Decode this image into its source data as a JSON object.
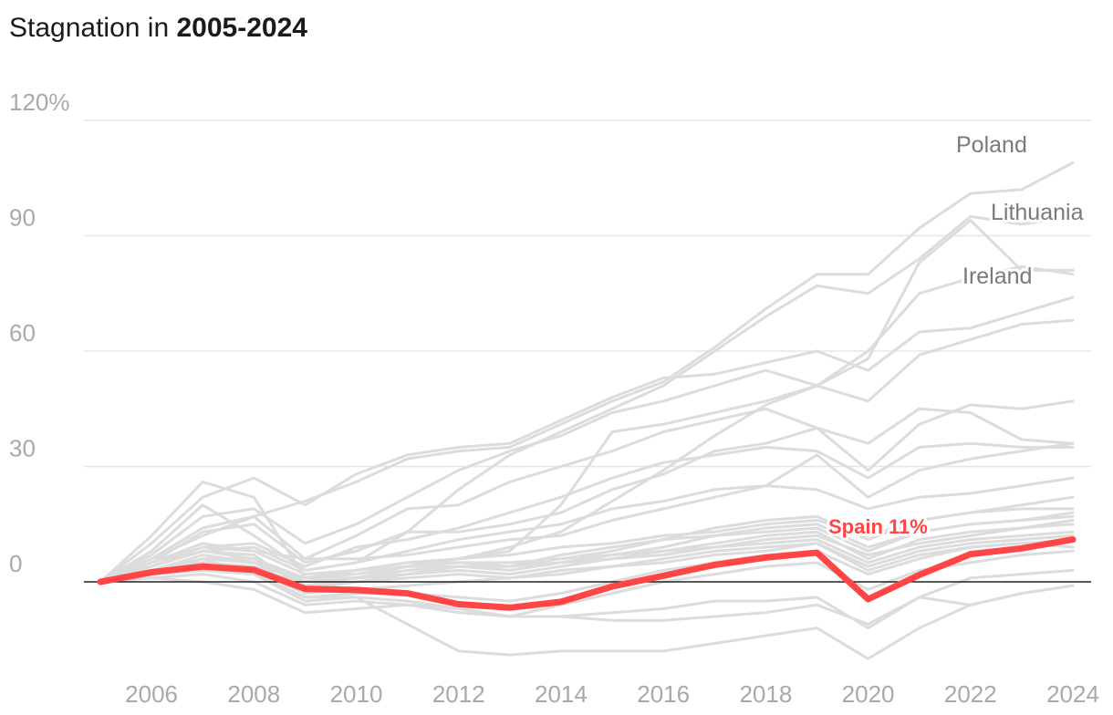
{
  "title": {
    "prefix": "Stagnation in ",
    "bold": "2005-2024"
  },
  "chart_data": {
    "type": "line",
    "y_unit_suffix": "%",
    "ylim": [
      -20,
      120
    ],
    "xlim": [
      2005,
      2024
    ],
    "y_ticks": [
      0,
      30,
      60,
      90,
      120
    ],
    "y_tick_labels": [
      "0",
      "30",
      "60",
      "90",
      "120%"
    ],
    "x_ticks": [
      2006,
      2008,
      2010,
      2012,
      2014,
      2016,
      2018,
      2020,
      2022,
      2024
    ],
    "x_tick_labels": [
      "2006",
      "2008",
      "2010",
      "2012",
      "2014",
      "2016",
      "2018",
      "2020",
      "2022",
      "2024"
    ],
    "grid": true,
    "colors": {
      "highlight": "#ff4545",
      "context": "#dcdcdc",
      "grid": "#e6e6e6",
      "zero": "#222222",
      "label": "#7a7a7a",
      "tick": "#a9a9a9"
    },
    "x": [
      2005,
      2006,
      2007,
      2008,
      2009,
      2010,
      2011,
      2012,
      2013,
      2014,
      2015,
      2016,
      2017,
      2018,
      2019,
      2020,
      2021,
      2022,
      2023,
      2024
    ],
    "highlight": {
      "name": "Spain",
      "label": "Spain 11%",
      "values": [
        0,
        2.5,
        4,
        3.1,
        -1.8,
        -2.1,
        -3,
        -5.8,
        -6.7,
        -5.2,
        -1.2,
        1.6,
        4.4,
        6.3,
        7.6,
        -4.5,
        1.8,
        7.2,
        8.7,
        11
      ]
    },
    "labeled_series": [
      {
        "name": "Poland",
        "values": [
          0,
          6,
          12,
          17,
          21,
          26,
          32,
          34,
          35,
          41,
          47,
          52,
          61,
          71,
          80,
          80,
          92,
          101,
          102,
          109
        ]
      },
      {
        "name": "Lithuania",
        "values": [
          0,
          8,
          20,
          12,
          3,
          5,
          13,
          24,
          33,
          39,
          45,
          51,
          60,
          69,
          77,
          75,
          84,
          95,
          93,
          95
        ]
      },
      {
        "name": "Ireland",
        "values": [
          0,
          5,
          9,
          8,
          2,
          3,
          5,
          6,
          8,
          20,
          39,
          41,
          44,
          47,
          51,
          58,
          83,
          94,
          81,
          81
        ]
      }
    ],
    "background_series": [
      [
        0,
        12,
        26,
        22,
        1,
        1,
        4,
        6,
        9,
        13,
        21,
        29,
        38,
        46,
        51,
        60,
        75,
        79,
        82,
        80
      ],
      [
        0,
        10,
        22,
        27,
        20,
        28,
        33,
        35,
        36,
        42,
        48,
        53,
        54,
        57,
        60,
        55,
        65,
        66,
        70,
        74
      ],
      [
        0,
        7,
        17,
        19,
        10,
        15,
        22,
        29,
        34,
        38,
        44,
        47,
        51,
        55,
        51,
        47,
        59,
        63,
        67,
        68
      ],
      [
        0,
        6,
        14,
        17,
        6,
        12,
        19,
        20,
        26,
        30,
        34,
        39,
        42,
        45,
        40,
        36,
        45,
        44,
        37,
        36
      ],
      [
        0,
        5,
        13,
        15,
        5,
        8,
        13,
        13,
        15,
        18,
        24,
        28,
        34,
        36,
        40,
        29,
        41,
        46,
        45,
        47
      ],
      [
        0,
        4,
        9,
        10,
        4,
        9,
        11,
        14,
        18,
        22,
        27,
        31,
        33,
        35,
        34,
        27,
        35,
        36,
        35,
        35
      ],
      [
        0,
        5,
        10,
        8,
        6,
        6,
        7,
        9,
        11,
        12,
        16,
        19,
        22,
        25,
        33,
        22,
        29,
        32,
        34,
        36
      ],
      [
        0,
        4,
        8,
        9,
        3,
        5,
        8,
        11,
        13,
        15,
        19,
        21,
        24,
        25,
        24,
        19,
        22,
        23,
        25,
        27
      ],
      [
        0,
        3,
        6,
        6,
        1,
        3,
        5,
        6,
        7,
        9,
        10,
        12,
        13,
        15,
        16,
        12,
        16,
        18,
        19,
        19
      ],
      [
        0,
        4,
        8,
        7,
        -2,
        0,
        2,
        4,
        4,
        6,
        8,
        11,
        14,
        16,
        17,
        11,
        16,
        18,
        20,
        22
      ],
      [
        0,
        3,
        6,
        6,
        0,
        3,
        5,
        5,
        4,
        7,
        9,
        11,
        12,
        14,
        15,
        9,
        13,
        15,
        16,
        18
      ],
      [
        0,
        3,
        7,
        5,
        1,
        2,
        4,
        5,
        5,
        6,
        7,
        9,
        12,
        13,
        14,
        8,
        13,
        15,
        16,
        17
      ],
      [
        0,
        4,
        8,
        6,
        -1,
        1,
        3,
        4,
        4,
        5,
        7,
        8,
        10,
        12,
        13,
        6,
        11,
        13,
        14,
        16
      ],
      [
        0,
        2,
        5,
        4,
        1,
        3,
        4,
        4,
        3,
        5,
        6,
        8,
        9,
        11,
        12,
        7,
        10,
        12,
        14,
        15
      ],
      [
        0,
        3,
        6,
        5,
        0,
        1,
        2,
        3,
        2,
        4,
        6,
        7,
        9,
        10,
        11,
        5,
        9,
        11,
        12,
        13
      ],
      [
        0,
        2,
        4,
        4,
        -1,
        0,
        1,
        2,
        1,
        3,
        4,
        5,
        7,
        8,
        10,
        4,
        8,
        10,
        11,
        12
      ],
      [
        0,
        3,
        5,
        3,
        -3,
        -2,
        -1,
        0,
        1,
        2,
        4,
        6,
        8,
        9,
        10,
        3,
        7,
        9,
        10,
        11
      ],
      [
        0,
        2,
        4,
        2,
        -4,
        -3,
        -3,
        -4,
        -5,
        -3,
        0,
        3,
        5,
        7,
        8,
        2,
        6,
        9,
        10,
        9
      ],
      [
        0,
        2,
        3,
        2,
        -4,
        -4,
        -5,
        -7,
        -9,
        -6,
        -3,
        0,
        2,
        4,
        5,
        -2,
        3,
        5,
        7,
        8
      ],
      [
        0,
        1,
        2,
        0,
        -6,
        -5,
        -6,
        -8,
        -9,
        -9,
        -8,
        -7,
        -5,
        -5,
        -4,
        -12,
        -4,
        1,
        2,
        3
      ],
      [
        0,
        1,
        0,
        -2,
        -8,
        -7,
        -6,
        -7,
        -9,
        -9,
        -10,
        -10,
        -9,
        -8,
        -6,
        -11,
        -4,
        -6,
        -3,
        -1
      ],
      [
        0,
        2,
        6,
        2,
        -5,
        -4,
        -11,
        -18,
        -19,
        -18,
        -18,
        -18,
        -16,
        -14,
        -12,
        -20,
        -12,
        -6,
        -3,
        -1
      ]
    ]
  }
}
